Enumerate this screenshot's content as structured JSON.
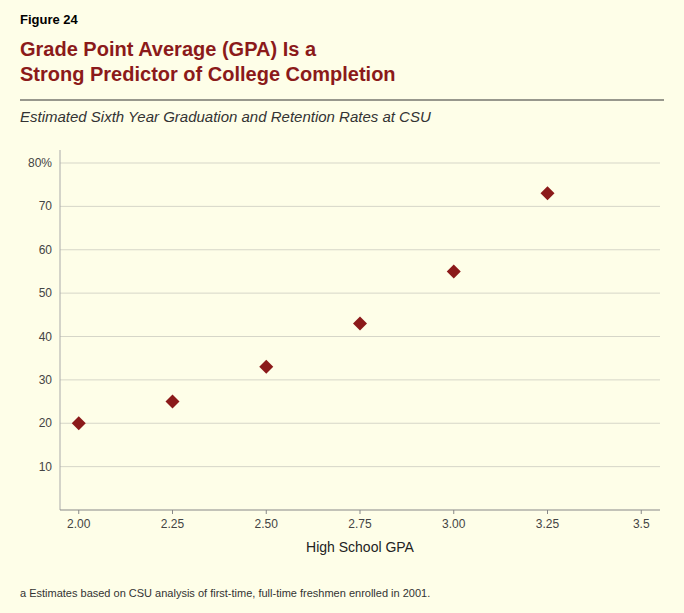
{
  "chart_data": {
    "type": "scatter",
    "figure_label": "Figure 24",
    "title": "Grade Point Average (GPA) Is a\nStrong Predictor of College Completion",
    "subtitle": "Estimated Sixth Year Graduation and Retention Rates at CSU",
    "xlabel": "High School GPA",
    "footnote": "a Estimates based on CSU analysis of first-time, full-time freshmen enrolled in 2001.",
    "x": [
      2.0,
      2.25,
      2.5,
      2.75,
      3.0,
      3.25
    ],
    "values": [
      20,
      25,
      33,
      43,
      55,
      73
    ],
    "color": "#8B1A1A",
    "marker": "diamond",
    "xlim": [
      1.95,
      3.55
    ],
    "ylim": [
      0,
      83
    ],
    "xticks": [
      {
        "value": 2.0,
        "label": "2.00"
      },
      2.25,
      {
        "value": 2.5,
        "label": "2.50"
      },
      2.75,
      {
        "value": 3.0,
        "label": "3.00"
      },
      3.25,
      3.5
    ],
    "yticks": [
      10,
      20,
      30,
      40,
      50,
      60,
      70,
      {
        "value": 80,
        "label": "80%"
      }
    ],
    "grid": true
  }
}
